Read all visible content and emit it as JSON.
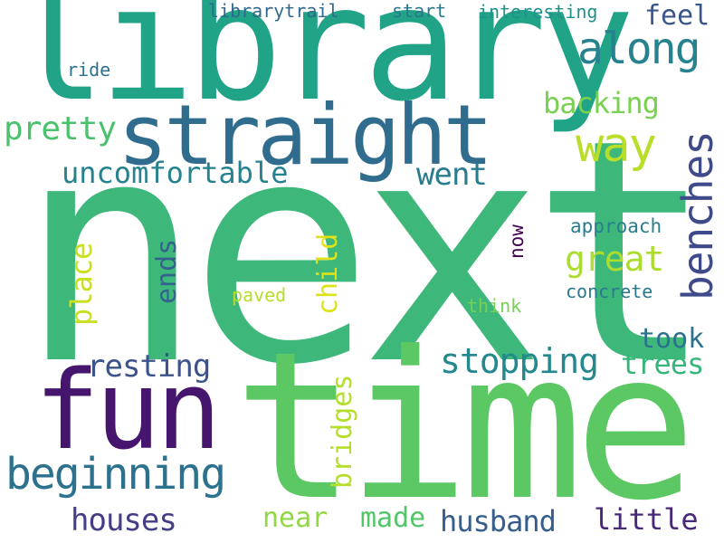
{
  "words": [
    {
      "id": "next",
      "text": "next",
      "color": "#3eb87a",
      "vertical": false
    },
    {
      "id": "library",
      "text": "library",
      "color": "#20a386",
      "vertical": false
    },
    {
      "id": "time",
      "text": "time",
      "color": "#5cc863",
      "vertical": false
    },
    {
      "id": "straight",
      "text": "straight",
      "color": "#2f6c8e",
      "vertical": false
    },
    {
      "id": "fun",
      "text": "fun",
      "color": "#46166e",
      "vertical": false
    },
    {
      "id": "beginning",
      "text": "beginning",
      "color": "#2c728e",
      "vertical": false
    },
    {
      "id": "along",
      "text": "along",
      "color": "#26828e",
      "vertical": false
    },
    {
      "id": "way",
      "text": "way",
      "color": "#b8de29",
      "vertical": false
    },
    {
      "id": "benches",
      "text": "benches",
      "color": "#3e4a89",
      "vertical": true
    },
    {
      "id": "uncomfortable",
      "text": "uncomfortable",
      "color": "#26828e",
      "vertical": false
    },
    {
      "id": "stopping",
      "text": "stopping",
      "color": "#23898e",
      "vertical": false
    },
    {
      "id": "resting",
      "text": "resting",
      "color": "#3b528b",
      "vertical": false
    },
    {
      "id": "houses",
      "text": "houses",
      "color": "#433e85",
      "vertical": false
    },
    {
      "id": "husband",
      "text": "husband",
      "color": "#355e8d",
      "vertical": false
    },
    {
      "id": "little",
      "text": "little",
      "color": "#482878",
      "vertical": false
    },
    {
      "id": "pretty",
      "text": "pretty",
      "color": "#4ac16d",
      "vertical": false
    },
    {
      "id": "backing",
      "text": "backing",
      "color": "#7ad151",
      "vertical": false
    },
    {
      "id": "great",
      "text": "great",
      "color": "#addc30",
      "vertical": false
    },
    {
      "id": "went",
      "text": "went",
      "color": "#287c8e",
      "vertical": false
    },
    {
      "id": "feel",
      "text": "feel",
      "color": "#39568c",
      "vertical": false
    },
    {
      "id": "took",
      "text": "took",
      "color": "#2c718e",
      "vertical": false
    },
    {
      "id": "trees",
      "text": "trees",
      "color": "#35b779",
      "vertical": false
    },
    {
      "id": "near",
      "text": "near",
      "color": "#90d743",
      "vertical": false
    },
    {
      "id": "made",
      "text": "made",
      "color": "#52c569",
      "vertical": false
    },
    {
      "id": "place",
      "text": "place",
      "color": "#c8e020",
      "vertical": true
    },
    {
      "id": "ends",
      "text": "ends",
      "color": "#33638d",
      "vertical": true
    },
    {
      "id": "child",
      "text": "child",
      "color": "#dde318",
      "vertical": true
    },
    {
      "id": "bridges",
      "text": "bridges",
      "color": "#b5de2b",
      "vertical": true
    },
    {
      "id": "librarytrail",
      "text": "librarytrail",
      "color": "#31688e",
      "vertical": false
    },
    {
      "id": "start",
      "text": "start",
      "color": "#2a788e",
      "vertical": false
    },
    {
      "id": "interesting",
      "text": "interesting",
      "color": "#21918c",
      "vertical": false
    },
    {
      "id": "ride",
      "text": "ride",
      "color": "#2d708e",
      "vertical": false
    },
    {
      "id": "approach",
      "text": "approach",
      "color": "#287d8e",
      "vertical": false
    },
    {
      "id": "now",
      "text": "now",
      "color": "#440154",
      "vertical": true
    },
    {
      "id": "paved",
      "text": "paved",
      "color": "#b5de2b",
      "vertical": false
    },
    {
      "id": "think",
      "text": "think",
      "color": "#75d054",
      "vertical": false
    },
    {
      "id": "concrete",
      "text": "concrete",
      "color": "#2a788e",
      "vertical": false
    }
  ]
}
